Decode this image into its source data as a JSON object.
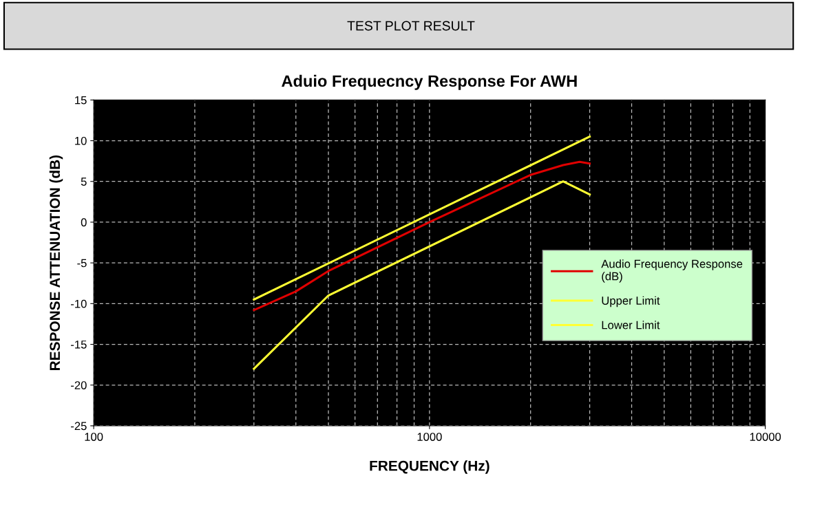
{
  "chart_data": {
    "type": "line",
    "title": "Aduio Frequecncy Response For AWH",
    "xlabel": "FREQUENCY (Hz)",
    "ylabel": "RESPONSE ATTENUATION (dB)",
    "annotations": [
      "TEST PLOT RESULT"
    ],
    "log": "x",
    "xlim": [
      100,
      10000
    ],
    "xticks": [
      100,
      1000,
      10000
    ],
    "ylim": [
      -25,
      15
    ],
    "yticks": [
      -25,
      -20,
      -15,
      -10,
      -5,
      0,
      5,
      10,
      15
    ],
    "grid": true,
    "legend": "right",
    "marker": "none",
    "line_style": "solid",
    "series": [
      {
        "name": "Audio Frequency Response (dB)",
        "color": "#e00000",
        "x": [
          300,
          400,
          500,
          1000,
          2000,
          2500,
          2800,
          3000
        ],
        "values": [
          -10.8,
          -8.5,
          -6,
          0,
          5.8,
          7,
          7.4,
          7.2
        ]
      },
      {
        "name": "Upper Limit",
        "color": "#ffff33",
        "x": [
          300,
          3000
        ],
        "values": [
          -9.5,
          10.5
        ]
      },
      {
        "name": "Lower Limit",
        "color": "#ffff33",
        "x": [
          300,
          500,
          2500,
          3000
        ],
        "values": [
          -18,
          -9,
          5,
          3.4
        ]
      }
    ]
  }
}
